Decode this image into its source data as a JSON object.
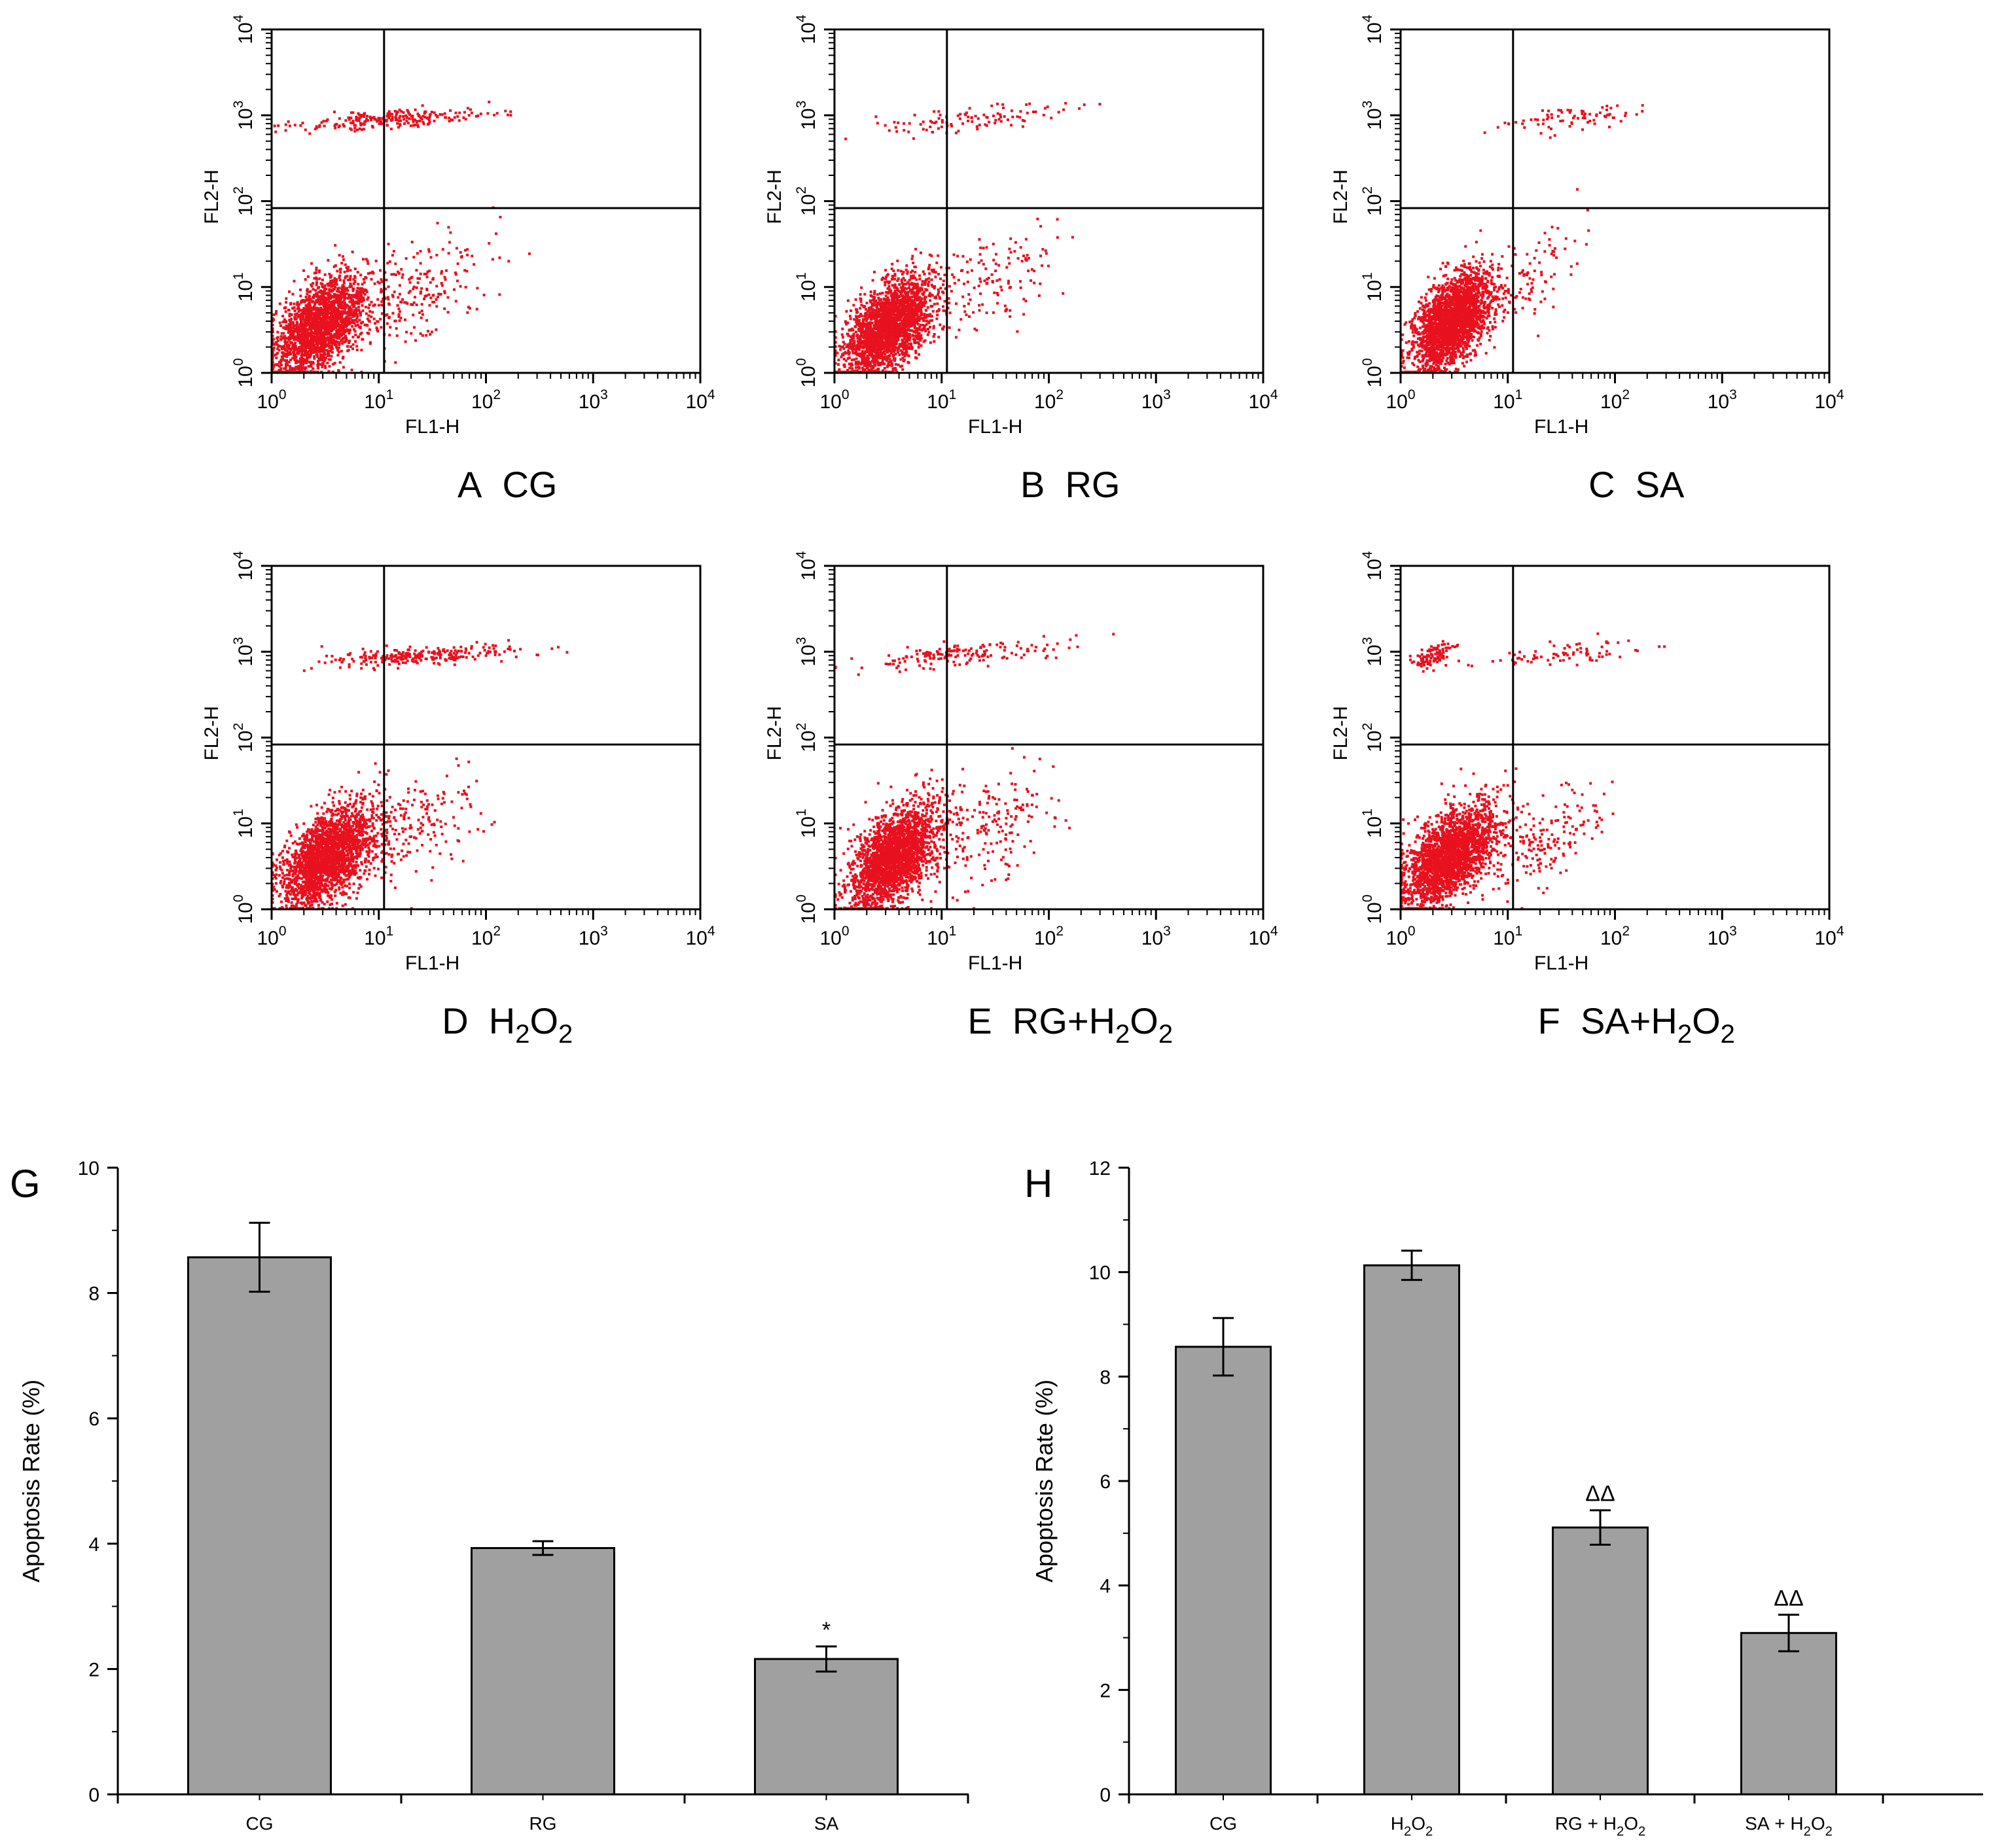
{
  "figure": {
    "colors": {
      "dots": "#e8111e",
      "bars": "#a0a0a0",
      "axes": "#000000",
      "background": "#ffffff"
    }
  },
  "flow_panels": {
    "x_axis_label": "FL1-H",
    "y_axis_label": "FL2-H",
    "tick_base": "10",
    "tick_exponents": [
      "0",
      "1",
      "2",
      "3",
      "4"
    ],
    "gate_log": {
      "x": 1.05,
      "y": 1.92
    },
    "panels": [
      {
        "id": "A",
        "letter": "A",
        "name": "CG"
      },
      {
        "id": "B",
        "letter": "B",
        "name": "RG"
      },
      {
        "id": "C",
        "letter": "C",
        "name": "SA"
      },
      {
        "id": "D",
        "letter": "D",
        "name": "H",
        "sub1": "2",
        "mid": "O",
        "sub2": "2"
      },
      {
        "id": "E",
        "letter": "E",
        "name": "RG+H",
        "sub1": "2",
        "mid": "O",
        "sub2": "2"
      },
      {
        "id": "F",
        "letter": "F",
        "name": "SA+H",
        "sub1": "2",
        "mid": "O",
        "sub2": "2"
      }
    ]
  },
  "chart_data": [
    {
      "type": "scatter",
      "panel": "A",
      "title": "A CG",
      "xlabel": "FL1-H",
      "ylabel": "FL2-H",
      "x_scale": "log",
      "y_scale": "log",
      "xlim": [
        1,
        10000
      ],
      "ylim": [
        1,
        10000
      ],
      "quadrant_gate": {
        "x": 11.2,
        "y": 83
      },
      "populations": [
        {
          "center": [
            2.8,
            3.5
          ],
          "spread": [
            0.22,
            0.3
          ],
          "fraction": 0.82
        },
        {
          "center": [
            15,
            900
          ],
          "spread": [
            0.45,
            0.06
          ],
          "fraction": 0.09
        },
        {
          "center": [
            20,
            8
          ],
          "spread": [
            0.35,
            0.35
          ],
          "fraction": 0.09
        }
      ],
      "approx_event_count": 2600
    },
    {
      "type": "scatter",
      "panel": "B",
      "title": "B RG",
      "xlabel": "FL1-H",
      "ylabel": "FL2-H",
      "x_scale": "log",
      "y_scale": "log",
      "xlim": [
        1,
        10000
      ],
      "ylim": [
        1,
        10000
      ],
      "quadrant_gate": {
        "x": 11.2,
        "y": 83
      },
      "populations": [
        {
          "center": [
            3.2,
            3.5
          ],
          "spread": [
            0.2,
            0.28
          ],
          "fraction": 0.9
        },
        {
          "center": [
            20,
            900
          ],
          "spread": [
            0.45,
            0.08
          ],
          "fraction": 0.04
        },
        {
          "center": [
            25,
            10
          ],
          "spread": [
            0.35,
            0.35
          ],
          "fraction": 0.06
        }
      ],
      "approx_event_count": 2600
    },
    {
      "type": "scatter",
      "panel": "C",
      "title": "C SA",
      "xlabel": "FL1-H",
      "ylabel": "FL2-H",
      "x_scale": "log",
      "y_scale": "log",
      "xlim": [
        1,
        10000
      ],
      "ylim": [
        1,
        10000
      ],
      "quadrant_gate": {
        "x": 11.2,
        "y": 83
      },
      "populations": [
        {
          "center": [
            3,
            4
          ],
          "spread": [
            0.18,
            0.28
          ],
          "fraction": 0.93
        },
        {
          "center": [
            40,
            900
          ],
          "spread": [
            0.4,
            0.08
          ],
          "fraction": 0.03
        },
        {
          "center": [
            14,
            10
          ],
          "spread": [
            0.25,
            0.35
          ],
          "fraction": 0.04
        }
      ],
      "approx_event_count": 2600
    },
    {
      "type": "scatter",
      "panel": "D",
      "title": "D H2O2",
      "xlabel": "FL1-H",
      "ylabel": "FL2-H",
      "x_scale": "log",
      "y_scale": "log",
      "xlim": [
        1,
        10000
      ],
      "ylim": [
        1,
        10000
      ],
      "quadrant_gate": {
        "x": 11.2,
        "y": 83
      },
      "populations": [
        {
          "center": [
            3.2,
            4
          ],
          "spread": [
            0.22,
            0.3
          ],
          "fraction": 0.82
        },
        {
          "center": [
            25,
            900
          ],
          "spread": [
            0.45,
            0.06
          ],
          "fraction": 0.1
        },
        {
          "center": [
            20,
            8
          ],
          "spread": [
            0.35,
            0.35
          ],
          "fraction": 0.08
        }
      ],
      "approx_event_count": 2600
    },
    {
      "type": "scatter",
      "panel": "E",
      "title": "E RG+H2O2",
      "xlabel": "FL1-H",
      "ylabel": "FL2-H",
      "x_scale": "log",
      "y_scale": "log",
      "xlim": [
        1,
        10000
      ],
      "ylim": [
        1,
        10000
      ],
      "quadrant_gate": {
        "x": 11.2,
        "y": 83
      },
      "populations": [
        {
          "center": [
            3.5,
            4
          ],
          "spread": [
            0.2,
            0.3
          ],
          "fraction": 0.86
        },
        {
          "center": [
            15,
            900
          ],
          "spread": [
            0.45,
            0.08
          ],
          "fraction": 0.06
        },
        {
          "center": [
            25,
            8
          ],
          "spread": [
            0.35,
            0.35
          ],
          "fraction": 0.08
        }
      ],
      "approx_event_count": 2600
    },
    {
      "type": "scatter",
      "panel": "F",
      "title": "F SA+H2O2",
      "xlabel": "FL1-H",
      "ylabel": "FL2-H",
      "x_scale": "log",
      "y_scale": "log",
      "xlim": [
        1,
        10000
      ],
      "ylim": [
        1,
        10000
      ],
      "quadrant_gate": {
        "x": 11.2,
        "y": 83
      },
      "populations": [
        {
          "center": [
            2.8,
            4
          ],
          "spread": [
            0.22,
            0.3
          ],
          "fraction": 0.86
        },
        {
          "center": [
            2,
            900
          ],
          "spread": [
            0.1,
            0.07
          ],
          "fraction": 0.04
        },
        {
          "center": [
            30,
            900
          ],
          "spread": [
            0.4,
            0.08
          ],
          "fraction": 0.03
        },
        {
          "center": [
            20,
            6
          ],
          "spread": [
            0.3,
            0.3
          ],
          "fraction": 0.07
        }
      ],
      "approx_event_count": 2600
    },
    {
      "type": "bar",
      "panel": "G",
      "panel_label": "G",
      "title": "",
      "xlabel": "",
      "ylabel": "Apoptosis Rate (%)",
      "ylim": [
        0,
        10
      ],
      "y_major_ticks": [
        0,
        2,
        4,
        6,
        8,
        10
      ],
      "categories": [
        "CG",
        "RG",
        "SA"
      ],
      "values": [
        8.57,
        3.93,
        2.16
      ],
      "errors": [
        0.55,
        0.11,
        0.2
      ],
      "annotations": [
        "",
        "",
        "*"
      ]
    },
    {
      "type": "bar",
      "panel": "H",
      "panel_label": "H",
      "title": "",
      "xlabel": "",
      "ylabel": "Apoptosis Rate (%)",
      "ylim": [
        0,
        12
      ],
      "y_major_ticks": [
        0,
        2,
        4,
        6,
        8,
        10,
        12
      ],
      "categories": [
        "CG",
        "H2O2",
        "RG + H2O2",
        "SA + H2O2"
      ],
      "values": [
        8.57,
        10.13,
        5.11,
        3.09
      ],
      "errors": [
        0.55,
        0.28,
        0.33,
        0.35
      ],
      "annotations": [
        "",
        "",
        "ΔΔ",
        "ΔΔ"
      ]
    }
  ]
}
